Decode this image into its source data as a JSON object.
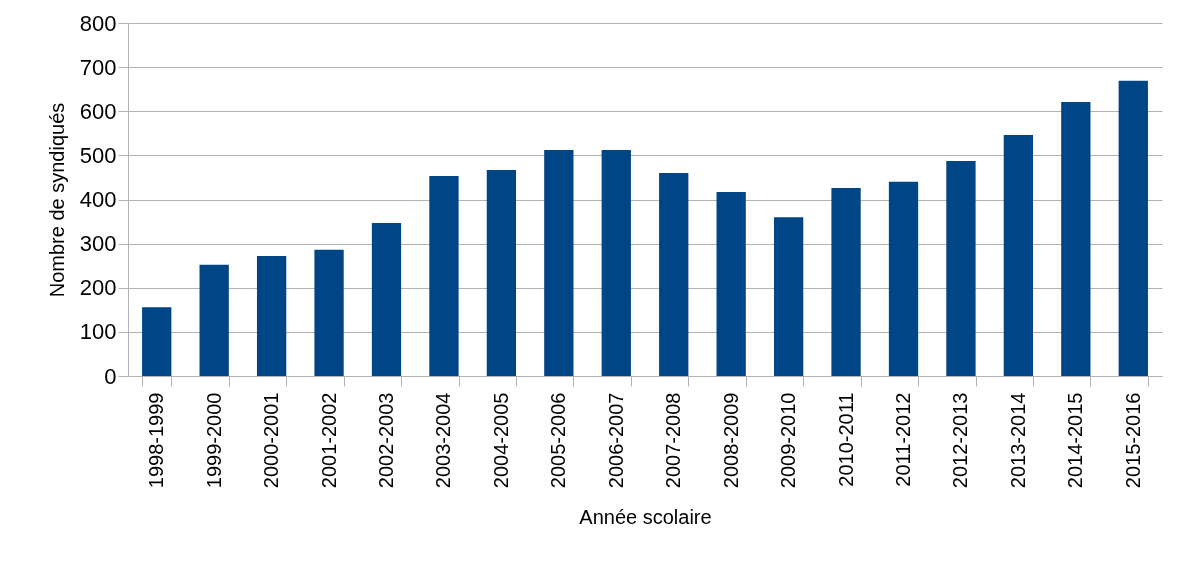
{
  "chart_data": {
    "type": "bar",
    "xlabel": "Année scolaire",
    "ylabel": "Nombre de syndiqués",
    "categories": [
      "1998-1999",
      "1999-2000",
      "2000-2001",
      "2001-2002",
      "2002-2003",
      "2003-2004",
      "2004-2005",
      "2005-2006",
      "2006-2007",
      "2007-2008",
      "2008-2009",
      "2009-2010",
      "2010-2011",
      "2011-2012",
      "2012-2013",
      "2013-2014",
      "2014-2015",
      "2015-2016"
    ],
    "values": [
      156,
      252,
      272,
      286,
      347,
      453,
      467,
      512,
      512,
      460,
      417,
      360,
      426,
      440,
      487,
      546,
      621,
      669
    ],
    "color": "#004586",
    "ylim": [
      0,
      800
    ],
    "yticks": [
      0,
      100,
      200,
      300,
      400,
      500,
      600,
      700,
      800
    ],
    "grid": "y"
  }
}
